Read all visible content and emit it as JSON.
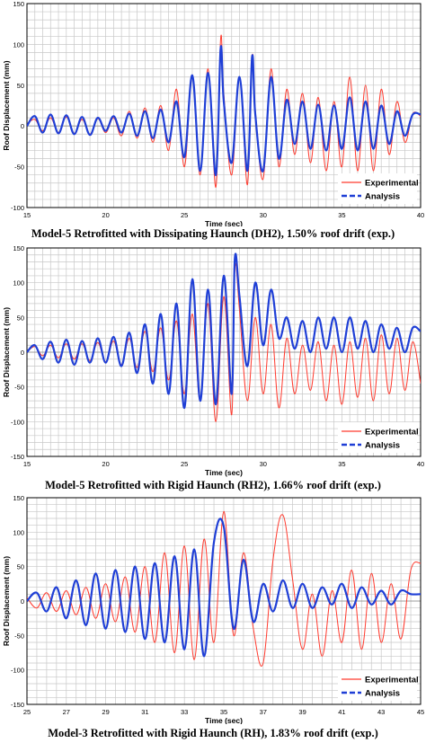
{
  "colors": {
    "experimental": "#ff3b2f",
    "analysis": "#1f3fd6",
    "grid": "#c8c8c8",
    "axis": "#000000"
  },
  "chart_data": [
    {
      "type": "line",
      "title": "Model-5 Retrofitted with Dissipating Haunch (DH2), 1.50% roof drift (exp.)",
      "xlabel": "Time (sec)",
      "ylabel": "Roof Displacement (mm)",
      "xlim": [
        15,
        40
      ],
      "ylim": [
        -100,
        150
      ],
      "xticks": [
        "15",
        "20",
        "25",
        "30",
        "35",
        "40"
      ],
      "yticks": [
        "150",
        "100",
        "50",
        "0",
        "-50",
        "-100"
      ],
      "grid": true,
      "legend": "bottom-right",
      "series": [
        {
          "name": "Experimental",
          "x": [
            15,
            15.5,
            16,
            16.5,
            17,
            17.5,
            18,
            18.5,
            19,
            19.5,
            20,
            20.5,
            21,
            21.5,
            22,
            22.5,
            23,
            23.5,
            24,
            24.5,
            25,
            25.5,
            26,
            26.5,
            27,
            27.3,
            27.5,
            28,
            28.5,
            29,
            29.3,
            29.5,
            30,
            30.5,
            31,
            31.5,
            32,
            32.5,
            33,
            33.5,
            34,
            34.5,
            35,
            35.5,
            36,
            36.5,
            37,
            37.5,
            38,
            38.5,
            39,
            39.5,
            40
          ],
          "y": [
            2,
            8,
            -6,
            10,
            -8,
            11,
            -9,
            8,
            -10,
            9,
            -8,
            10,
            -12,
            18,
            -15,
            22,
            -20,
            25,
            -30,
            45,
            -50,
            60,
            -60,
            70,
            -75,
            107,
            40,
            -60,
            60,
            -72,
            85,
            20,
            -65,
            70,
            -50,
            45,
            -35,
            40,
            -45,
            35,
            -55,
            30,
            -50,
            60,
            -55,
            50,
            -55,
            45,
            -35,
            30,
            -20,
            15,
            12
          ]
        },
        {
          "name": "Analysis",
          "x": [
            15,
            15.5,
            16,
            16.5,
            17,
            17.5,
            18,
            18.5,
            19,
            19.5,
            20,
            20.5,
            21,
            21.5,
            22,
            22.5,
            23,
            23.5,
            24,
            24.5,
            25,
            25.5,
            26,
            26.5,
            27,
            27.3,
            27.5,
            28,
            28.5,
            29,
            29.3,
            29.5,
            30,
            30.5,
            31,
            31.5,
            32,
            32.5,
            33,
            33.5,
            34,
            34.5,
            35,
            35.5,
            36,
            36.5,
            37,
            37.5,
            38,
            38.5,
            39,
            39.5,
            40
          ],
          "y": [
            0,
            12,
            -8,
            14,
            -9,
            13,
            -10,
            11,
            -11,
            10,
            -6,
            12,
            -8,
            15,
            -12,
            18,
            -15,
            20,
            -20,
            30,
            -38,
            62,
            -55,
            65,
            -60,
            95,
            30,
            -45,
            60,
            -55,
            85,
            15,
            -55,
            60,
            -40,
            32,
            -22,
            30,
            -28,
            26,
            -30,
            25,
            -28,
            35,
            -30,
            30,
            -28,
            25,
            -22,
            18,
            -12,
            14,
            14
          ]
        }
      ]
    },
    {
      "type": "line",
      "title": "Model-5 Retrofitted with Rigid Haunch (RH2), 1.66% roof drift (exp.)",
      "xlabel": "Time (sec)",
      "ylabel": "Roof Displacement (mm)",
      "xlim": [
        15,
        40
      ],
      "ylim": [
        -150,
        150
      ],
      "xticks": [
        "15",
        "20",
        "25",
        "30",
        "35",
        "40"
      ],
      "yticks": [
        "150",
        "100",
        "50",
        "0",
        "-50",
        "-100",
        "-150"
      ],
      "grid": true,
      "legend": "bottom-right",
      "series": [
        {
          "name": "Experimental",
          "x": [
            15,
            15.5,
            16,
            16.5,
            17,
            17.5,
            18,
            18.5,
            19,
            19.5,
            20,
            20.5,
            21,
            21.5,
            22,
            22.5,
            23,
            23.5,
            24,
            24.5,
            25,
            25.5,
            26,
            26.5,
            27,
            27.5,
            28,
            28.2,
            28.5,
            29,
            29.5,
            30,
            30.5,
            31,
            31.5,
            32,
            32.5,
            33,
            33.5,
            34,
            34.5,
            35,
            35.5,
            36,
            36.5,
            37,
            37.5,
            38,
            38.5,
            39,
            39.5,
            40
          ],
          "y": [
            0,
            8,
            -5,
            10,
            -8,
            12,
            -10,
            12,
            -12,
            14,
            -14,
            16,
            -18,
            20,
            -22,
            30,
            -28,
            35,
            -40,
            45,
            -60,
            55,
            -70,
            70,
            -100,
            80,
            -90,
            120,
            60,
            -70,
            50,
            -60,
            40,
            -80,
            20,
            -60,
            10,
            -55,
            15,
            -70,
            10,
            -75,
            15,
            -65,
            20,
            -70,
            25,
            -60,
            20,
            -55,
            15,
            -45
          ]
        },
        {
          "name": "Analysis",
          "x": [
            15,
            15.5,
            16,
            16.5,
            17,
            17.5,
            18,
            18.5,
            19,
            19.5,
            20,
            20.5,
            21,
            21.5,
            22,
            22.5,
            23,
            23.5,
            24,
            24.5,
            25,
            25.5,
            26,
            26.5,
            27,
            27.5,
            28,
            28.2,
            28.5,
            29,
            29.5,
            30,
            30.5,
            31,
            31.5,
            32,
            32.5,
            33,
            33.5,
            34,
            34.5,
            35,
            35.5,
            36,
            36.5,
            37,
            37.5,
            38,
            38.5,
            39,
            39.5,
            40
          ],
          "y": [
            0,
            10,
            -10,
            15,
            -15,
            18,
            -18,
            16,
            -15,
            20,
            -15,
            22,
            -20,
            28,
            -30,
            40,
            -45,
            55,
            -60,
            70,
            -80,
            105,
            -70,
            90,
            -75,
            110,
            -60,
            135,
            80,
            -20,
            100,
            10,
            90,
            20,
            50,
            5,
            45,
            0,
            50,
            5,
            50,
            0,
            50,
            5,
            45,
            0,
            40,
            5,
            35,
            0,
            35,
            30
          ]
        }
      ]
    },
    {
      "type": "line",
      "title": "Model-3 Retrofitted with Rigid Haunch (RH), 1.83% roof drift (exp.)",
      "xlabel": "Time (sec)",
      "ylabel": "Roof Displacement (mm)",
      "xlim": [
        25,
        45
      ],
      "ylim": [
        -150,
        150
      ],
      "xticks": [
        "25",
        "27",
        "29",
        "31",
        "33",
        "35",
        "37",
        "39",
        "41",
        "43",
        "45"
      ],
      "yticks": [
        "150",
        "100",
        "50",
        "0",
        "-50",
        "-100",
        "-150"
      ],
      "grid": true,
      "legend": "bottom-right",
      "series": [
        {
          "name": "Experimental",
          "x": [
            25,
            25.5,
            26,
            26.5,
            27,
            27.5,
            28,
            28.5,
            29,
            29.5,
            30,
            30.5,
            31,
            31.5,
            32,
            32.5,
            33,
            33.5,
            34,
            34.5,
            35,
            35.5,
            36,
            36.5,
            37,
            37.5,
            38,
            38.5,
            39,
            39.5,
            40,
            40.5,
            41,
            41.5,
            42,
            42.5,
            43,
            43.5,
            44,
            44.5,
            45
          ],
          "y": [
            5,
            -10,
            12,
            -15,
            15,
            -20,
            20,
            -25,
            25,
            -30,
            35,
            -45,
            50,
            -60,
            70,
            -75,
            80,
            -85,
            90,
            -60,
            130,
            -50,
            70,
            -40,
            -90,
            60,
            125,
            30,
            -70,
            10,
            -80,
            15,
            -60,
            45,
            -70,
            40,
            -60,
            25,
            -55,
            45,
            55
          ]
        },
        {
          "name": "Analysis",
          "x": [
            25,
            25.5,
            26,
            26.5,
            27,
            27.5,
            28,
            28.5,
            29,
            29.5,
            30,
            30.5,
            31,
            31.5,
            32,
            32.5,
            33,
            33.5,
            34,
            34.5,
            35,
            35.5,
            36,
            36.5,
            37,
            37.5,
            38,
            38.5,
            39,
            39.5,
            40,
            40.5,
            41,
            41.5,
            42,
            42.5,
            43,
            43.5,
            44,
            44.5,
            45
          ],
          "y": [
            0,
            12,
            -15,
            20,
            -25,
            30,
            -35,
            40,
            -40,
            45,
            -45,
            50,
            -55,
            55,
            -60,
            65,
            -70,
            75,
            -80,
            85,
            108,
            -40,
            60,
            -30,
            25,
            -15,
            30,
            -10,
            25,
            -10,
            20,
            -5,
            25,
            -10,
            20,
            -5,
            15,
            -5,
            15,
            10,
            10
          ]
        }
      ]
    }
  ]
}
